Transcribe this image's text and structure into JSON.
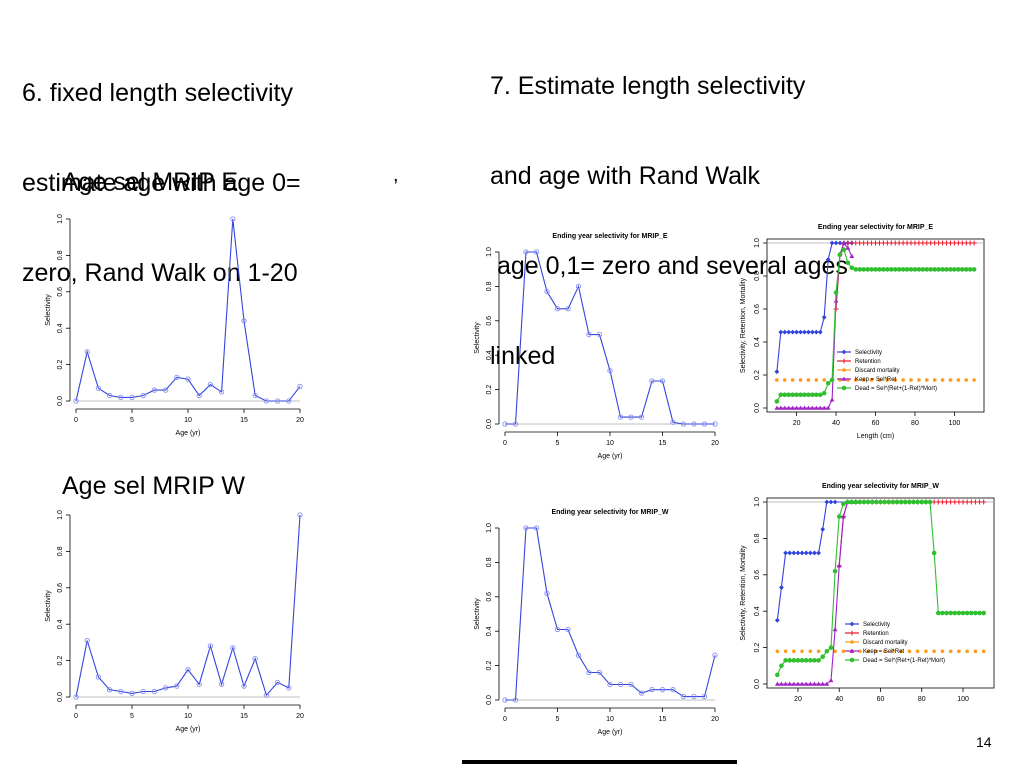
{
  "slide": {
    "left_heading": [
      "6. fixed length selectivity",
      "estimate age with age 0=",
      "zero, Rand Walk on 1-20"
    ],
    "right_heading": [
      "7. Estimate length selectivity",
      "and age with Rand Walk",
      " age 0,1= zero and several ages",
      "linked"
    ],
    "label_e": "Age sel MRIP E",
    "label_e_mark": ",",
    "label_w": "Age sel MRIP W",
    "page_number": "14"
  },
  "colors": {
    "selectivity": "#3344dd",
    "marker": "#8890ee",
    "retention": "#e8182a",
    "discard": "#ff9a1a",
    "keep": "#a020c8",
    "dead": "#2fbf2f",
    "refline": "#aaaaaa"
  },
  "chart_data": [
    {
      "id": "c1",
      "type": "line",
      "title": "",
      "xlabel": "Age (yr)",
      "ylabel": "Selectivity",
      "xlim": [
        0,
        20
      ],
      "ylim": [
        0,
        1
      ],
      "xticks": [
        0,
        5,
        10,
        15,
        20
      ],
      "yticks": [
        0.0,
        0.2,
        0.4,
        0.6,
        0.8,
        1.0
      ],
      "yticklabels": [
        "0.0",
        "0.2",
        "0.4",
        "0.6",
        "0.8",
        "1.0"
      ],
      "series": [
        {
          "color": "selectivity",
          "x": [
            0,
            1,
            2,
            3,
            4,
            5,
            6,
            7,
            8,
            9,
            10,
            11,
            12,
            13,
            14,
            15,
            16,
            17,
            18,
            19,
            20
          ],
          "y": [
            0,
            0.27,
            0.07,
            0.03,
            0.02,
            0.02,
            0.03,
            0.06,
            0.06,
            0.13,
            0.12,
            0.03,
            0.09,
            0.05,
            1.0,
            0.44,
            0.03,
            0.0,
            0.0,
            0.0,
            0.08
          ]
        }
      ]
    },
    {
      "id": "c2",
      "type": "line",
      "title": "",
      "xlabel": "Age (yr)",
      "ylabel": "Selectivity",
      "xlim": [
        0,
        20
      ],
      "ylim": [
        0,
        1
      ],
      "xticks": [
        0,
        5,
        10,
        15,
        20
      ],
      "yticks": [
        0.0,
        0.2,
        0.4,
        0.6,
        0.8,
        1.0
      ],
      "yticklabels": [
        "0.0",
        "0.2",
        "0.4",
        "0.6",
        "0.8",
        "1.0"
      ],
      "series": [
        {
          "color": "selectivity",
          "x": [
            0,
            1,
            2,
            3,
            4,
            5,
            6,
            7,
            8,
            9,
            10,
            11,
            12,
            13,
            14,
            15,
            16,
            17,
            18,
            19,
            20
          ],
          "y": [
            0,
            0.31,
            0.11,
            0.04,
            0.03,
            0.02,
            0.03,
            0.03,
            0.05,
            0.06,
            0.15,
            0.07,
            0.28,
            0.07,
            0.27,
            0.06,
            0.21,
            0.01,
            0.08,
            0.05,
            1.0
          ]
        }
      ]
    },
    {
      "id": "c3",
      "type": "line",
      "title": "Ending year selectivity for MRIP_E",
      "xlabel": "Age (yr)",
      "ylabel": "Selectivity",
      "xlim": [
        0,
        20
      ],
      "ylim": [
        0,
        1
      ],
      "xticks": [
        0,
        5,
        10,
        15,
        20
      ],
      "yticks": [
        0.0,
        0.2,
        0.4,
        0.6,
        0.8,
        1.0
      ],
      "yticklabels": [
        "0.0",
        "0.2",
        "0.4",
        "0.6",
        "0.8",
        "1.0"
      ],
      "series": [
        {
          "color": "selectivity",
          "x": [
            0,
            1,
            2,
            3,
            4,
            5,
            6,
            7,
            8,
            9,
            10,
            11,
            12,
            13,
            14,
            15,
            16,
            17,
            18,
            19,
            20
          ],
          "y": [
            0,
            0,
            1.0,
            1.0,
            0.77,
            0.67,
            0.67,
            0.8,
            0.52,
            0.52,
            0.31,
            0.04,
            0.04,
            0.04,
            0.25,
            0.25,
            0.01,
            0,
            0,
            0,
            0
          ]
        }
      ]
    },
    {
      "id": "c4",
      "type": "line",
      "title": "Ending year selectivity for MRIP_W",
      "xlabel": "Age (yr)",
      "ylabel": "Selectivity",
      "xlim": [
        0,
        20
      ],
      "ylim": [
        0,
        1
      ],
      "xticks": [
        0,
        5,
        10,
        15,
        20
      ],
      "yticks": [
        0.0,
        0.2,
        0.4,
        0.6,
        0.8,
        1.0
      ],
      "yticklabels": [
        "0.0",
        "0.2",
        "0.4",
        "0.6",
        "0.8",
        "1.0"
      ],
      "series": [
        {
          "color": "selectivity",
          "x": [
            0,
            1,
            2,
            3,
            4,
            5,
            6,
            7,
            8,
            9,
            10,
            11,
            12,
            13,
            14,
            15,
            16,
            17,
            18,
            19,
            20
          ],
          "y": [
            0,
            0,
            1.0,
            1.0,
            0.62,
            0.41,
            0.41,
            0.26,
            0.16,
            0.16,
            0.09,
            0.09,
            0.09,
            0.04,
            0.06,
            0.06,
            0.06,
            0.02,
            0.02,
            0.02,
            0.26
          ]
        }
      ]
    },
    {
      "id": "c5",
      "type": "line",
      "title": "Ending year selectivity for MRIP_E",
      "xlabel": "Length (cm)",
      "ylabel": "Selectivity, Retention, Mortality",
      "xlim": [
        5,
        115
      ],
      "ylim": [
        0,
        1
      ],
      "xticks": [
        20,
        40,
        60,
        80,
        100
      ],
      "yticks": [
        0.0,
        0.2,
        0.4,
        0.6,
        0.8,
        1.0
      ],
      "yticklabels": [
        "0.0",
        "0.2",
        "0.4",
        "0.6",
        "0.8",
        "1.0"
      ],
      "legend": {
        "position": "bottom-right",
        "entries": [
          "Selectivity",
          "Retention",
          "Discard mortality",
          "Keep = Sel*Ret",
          "Dead = Sel*(Ret+(1-Ret)*Mort)"
        ]
      },
      "series": [
        {
          "name": "Selectivity",
          "color": "selectivity",
          "marker": "diamond",
          "x": [
            10,
            12,
            14,
            16,
            18,
            20,
            22,
            24,
            26,
            28,
            30,
            32,
            34,
            36,
            38,
            40,
            42,
            44,
            46,
            48,
            110
          ],
          "y": [
            0.22,
            0.46,
            0.46,
            0.46,
            0.46,
            0.46,
            0.46,
            0.46,
            0.46,
            0.46,
            0.46,
            0.46,
            0.55,
            0.9,
            1.0,
            1.0,
            1.0,
            1.0,
            1.0,
            1.0,
            1.0
          ]
        },
        {
          "name": "Retention",
          "color": "retention",
          "marker": "plus",
          "x": [
            40,
            42,
            44,
            46,
            48,
            50,
            52,
            54,
            56,
            58,
            60,
            62,
            64,
            66,
            68,
            70,
            72,
            74,
            76,
            78,
            80,
            82,
            84,
            86,
            88,
            90,
            92,
            94,
            96,
            98,
            100,
            102,
            104,
            106,
            108,
            110
          ],
          "y": [
            0.6,
            0.93,
            1.0,
            1.0,
            1.0,
            1.0,
            1.0,
            1.0,
            1.0,
            1.0,
            1.0,
            1.0,
            1.0,
            1.0,
            1.0,
            1.0,
            1.0,
            1.0,
            1.0,
            1.0,
            1.0,
            1.0,
            1.0,
            1.0,
            1.0,
            1.0,
            1.0,
            1.0,
            1.0,
            1.0,
            1.0,
            1.0,
            1.0,
            1.0,
            1.0,
            1.0
          ]
        },
        {
          "name": "Discard mortality",
          "color": "discard",
          "marker": "dot",
          "x": [
            10,
            14,
            18,
            22,
            26,
            30,
            34,
            38,
            42,
            46,
            50,
            54,
            58,
            62,
            66,
            70,
            74,
            78,
            82,
            86,
            90,
            94,
            98,
            102,
            106,
            110
          ],
          "y": [
            0.17,
            0.17,
            0.17,
            0.17,
            0.17,
            0.17,
            0.17,
            0.17,
            0.17,
            0.17,
            0.17,
            0.17,
            0.17,
            0.17,
            0.17,
            0.17,
            0.17,
            0.17,
            0.17,
            0.17,
            0.17,
            0.17,
            0.17,
            0.17,
            0.17,
            0.17
          ]
        },
        {
          "name": "Keep = Sel*Ret",
          "color": "keep",
          "marker": "triangle",
          "x": [
            10,
            12,
            14,
            16,
            18,
            20,
            22,
            24,
            26,
            28,
            30,
            32,
            34,
            36,
            38,
            40,
            42,
            44,
            46,
            48
          ],
          "y": [
            0,
            0,
            0,
            0,
            0,
            0,
            0,
            0,
            0,
            0,
            0,
            0,
            0,
            0,
            0.05,
            0.65,
            0.93,
            1.0,
            0.97,
            0.92
          ]
        },
        {
          "name": "Dead = Sel*(Ret+(1-Ret)*Mort)",
          "color": "dead",
          "marker": "circle",
          "x": [
            10,
            12,
            14,
            16,
            18,
            20,
            22,
            24,
            26,
            28,
            30,
            32,
            34,
            36,
            38,
            40,
            42,
            44,
            46,
            48,
            50,
            52,
            54,
            56,
            58,
            60,
            62,
            64,
            66,
            68,
            70,
            72,
            74,
            76,
            78,
            80,
            82,
            84,
            86,
            88,
            90,
            92,
            94,
            96,
            98,
            100,
            102,
            104,
            106,
            108,
            110
          ],
          "y": [
            0.04,
            0.08,
            0.08,
            0.08,
            0.08,
            0.08,
            0.08,
            0.08,
            0.08,
            0.08,
            0.08,
            0.08,
            0.09,
            0.15,
            0.17,
            0.7,
            0.93,
            0.96,
            0.88,
            0.85,
            0.84,
            0.84,
            0.84,
            0.84,
            0.84,
            0.84,
            0.84,
            0.84,
            0.84,
            0.84,
            0.84,
            0.84,
            0.84,
            0.84,
            0.84,
            0.84,
            0.84,
            0.84,
            0.84,
            0.84,
            0.84,
            0.84,
            0.84,
            0.84,
            0.84,
            0.84,
            0.84,
            0.84,
            0.84,
            0.84,
            0.84
          ]
        }
      ]
    },
    {
      "id": "c6",
      "type": "line",
      "title": "Ending year selectivity for MRIP_W",
      "xlabel": "",
      "ylabel": "Selectivity, Retention, Mortality",
      "xlim": [
        5,
        115
      ],
      "ylim": [
        0,
        1
      ],
      "xticks": [
        20,
        40,
        60,
        80,
        100
      ],
      "yticks": [
        0.0,
        0.2,
        0.4,
        0.6,
        0.8,
        1.0
      ],
      "yticklabels": [
        "0.0",
        "0.2",
        "0.4",
        "0.6",
        "0.8",
        "1.0"
      ],
      "legend": {
        "position": "bottom-center",
        "entries": [
          "Selectivity",
          "Retention",
          "Discard mortality",
          "Keep = Sel*Ret",
          "Dead = Sel*(Ret+(1-Ret)*Mort)"
        ]
      },
      "series": [
        {
          "name": "Selectivity",
          "color": "selectivity",
          "marker": "diamond",
          "x": [
            10,
            12,
            14,
            16,
            18,
            20,
            22,
            24,
            26,
            28,
            30,
            32,
            34,
            36,
            38,
            110
          ],
          "y": [
            0.35,
            0.53,
            0.72,
            0.72,
            0.72,
            0.72,
            0.72,
            0.72,
            0.72,
            0.72,
            0.72,
            0.85,
            1.0,
            1.0,
            1.0,
            1.0
          ]
        },
        {
          "name": "Retention",
          "color": "retention",
          "marker": "plus",
          "x": [
            40,
            42,
            44,
            46,
            48,
            50,
            52,
            54,
            56,
            58,
            60,
            62,
            64,
            66,
            68,
            70,
            72,
            74,
            76,
            78,
            80,
            82,
            84,
            86,
            88,
            90,
            92,
            94,
            96,
            98,
            100,
            102,
            104,
            106,
            108,
            110
          ],
          "y": [
            0.65,
            0.92,
            1.0,
            1.0,
            1.0,
            1.0,
            1.0,
            1.0,
            1.0,
            1.0,
            1.0,
            1.0,
            1.0,
            1.0,
            1.0,
            1.0,
            1.0,
            1.0,
            1.0,
            1.0,
            1.0,
            1.0,
            1.0,
            1.0,
            1.0,
            1.0,
            1.0,
            1.0,
            1.0,
            1.0,
            1.0,
            1.0,
            1.0,
            1.0,
            1.0,
            1.0
          ]
        },
        {
          "name": "Discard mortality",
          "color": "discard",
          "marker": "dot",
          "x": [
            10,
            14,
            18,
            22,
            26,
            30,
            34,
            38,
            42,
            46,
            50,
            54,
            58,
            62,
            66,
            70,
            74,
            78,
            82,
            86,
            90,
            94,
            98,
            102,
            106,
            110
          ],
          "y": [
            0.18,
            0.18,
            0.18,
            0.18,
            0.18,
            0.18,
            0.18,
            0.18,
            0.18,
            0.18,
            0.18,
            0.18,
            0.18,
            0.18,
            0.18,
            0.18,
            0.18,
            0.18,
            0.18,
            0.18,
            0.18,
            0.18,
            0.18,
            0.18,
            0.18,
            0.18
          ]
        },
        {
          "name": "Keep = Sel*Ret",
          "color": "keep",
          "marker": "triangle",
          "x": [
            10,
            12,
            14,
            16,
            18,
            20,
            22,
            24,
            26,
            28,
            30,
            32,
            34,
            36,
            38,
            40,
            42,
            44,
            46,
            48
          ],
          "y": [
            0,
            0,
            0,
            0,
            0,
            0,
            0,
            0,
            0,
            0,
            0,
            0,
            0,
            0.02,
            0.3,
            0.65,
            0.92,
            1.0,
            1.0,
            1.0
          ]
        },
        {
          "name": "Dead = Sel*(Ret+(1-Ret)*Mort)",
          "color": "dead",
          "marker": "circle",
          "x": [
            10,
            12,
            14,
            16,
            18,
            20,
            22,
            24,
            26,
            28,
            30,
            32,
            34,
            36,
            38,
            40,
            42,
            44,
            46,
            48,
            50,
            52,
            54,
            56,
            58,
            60,
            62,
            64,
            66,
            68,
            70,
            72,
            74,
            76,
            78,
            80,
            82,
            84,
            86,
            88,
            90,
            92,
            94,
            96,
            98,
            100,
            102,
            104,
            106,
            108,
            110
          ],
          "y": [
            0.05,
            0.1,
            0.13,
            0.13,
            0.13,
            0.13,
            0.13,
            0.13,
            0.13,
            0.13,
            0.13,
            0.15,
            0.18,
            0.2,
            0.62,
            0.92,
            0.99,
            1.0,
            1.0,
            1.0,
            1.0,
            1.0,
            1.0,
            1.0,
            1.0,
            1.0,
            1.0,
            1.0,
            1.0,
            1.0,
            1.0,
            1.0,
            1.0,
            1.0,
            1.0,
            1.0,
            1.0,
            1.0,
            0.72,
            0.39,
            0.39,
            0.39,
            0.39,
            0.39,
            0.39,
            0.39,
            0.39,
            0.39,
            0.39,
            0.39,
            0.39
          ]
        }
      ]
    }
  ]
}
